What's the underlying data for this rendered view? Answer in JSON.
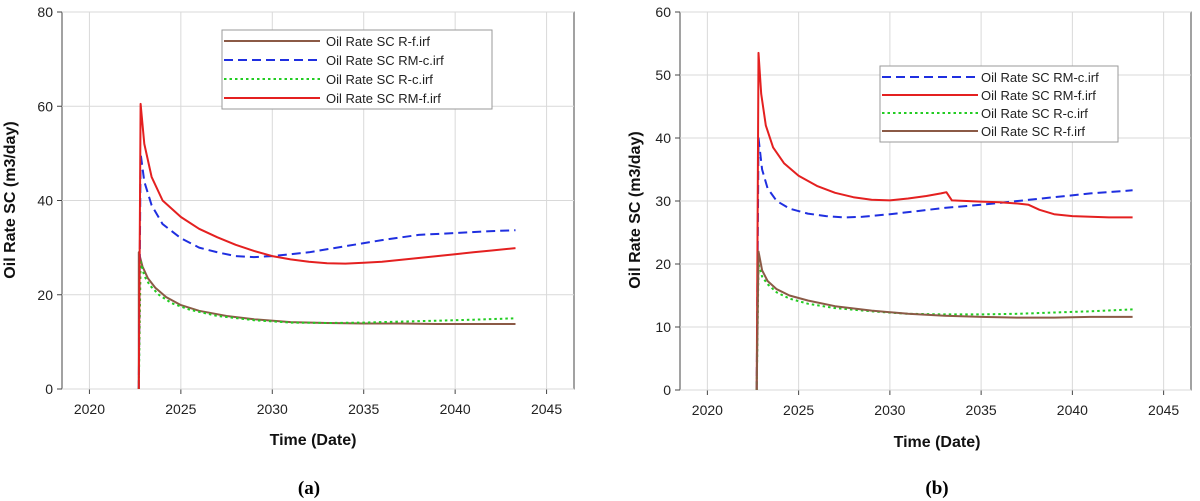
{
  "chart_data": [
    {
      "type": "line",
      "panel_label": "(a)",
      "title": "",
      "xlabel": "Time (Date)",
      "ylabel": "Oil Rate SC (m3/day)",
      "xlim": [
        2018.5,
        2046.5
      ],
      "ylim": [
        0,
        80
      ],
      "xticks": [
        2020,
        2025,
        2030,
        2035,
        2040,
        2045
      ],
      "yticks": [
        0,
        20,
        40,
        60,
        80
      ],
      "grid": true,
      "legend_position": "top-right",
      "series": [
        {
          "name": "Oil Rate SC R-f.irf",
          "color": "#8b5a46",
          "style": "solid",
          "x": [
            2022.7,
            2022.7,
            2022.9,
            2023.2,
            2023.6,
            2024.2,
            2025,
            2026,
            2027.5,
            2029,
            2031,
            2033,
            2035,
            2037,
            2039,
            2041,
            2043.3
          ],
          "y": [
            0,
            29,
            26,
            23.5,
            21.5,
            19.5,
            17.8,
            16.6,
            15.5,
            14.8,
            14.2,
            14.0,
            13.9,
            13.9,
            13.8,
            13.8,
            13.8
          ]
        },
        {
          "name": "Oil Rate SC RM-c.irf",
          "color": "#1f2fe0",
          "style": "dashed",
          "x": [
            2022.7,
            2022.8,
            2023.0,
            2023.4,
            2024,
            2025,
            2026,
            2027,
            2028,
            2029,
            2030,
            2032,
            2034,
            2036,
            2038,
            2040,
            2042,
            2043.3
          ],
          "y": [
            0,
            50,
            44,
            39,
            35,
            32,
            30,
            29,
            28.2,
            28,
            28.2,
            29,
            30.3,
            31.6,
            32.7,
            33.1,
            33.5,
            33.7
          ]
        },
        {
          "name": "Oil Rate SC R-c.irf",
          "color": "#22cc22",
          "style": "dotted",
          "x": [
            2022.7,
            2022.8,
            2023.0,
            2023.3,
            2023.8,
            2024.5,
            2025.5,
            2027,
            2029,
            2031,
            2033,
            2035,
            2037,
            2039,
            2041,
            2043.3
          ],
          "y": [
            0,
            27,
            24,
            22,
            20,
            18.2,
            16.8,
            15.5,
            14.6,
            14.1,
            14.0,
            14.1,
            14.3,
            14.5,
            14.7,
            15.0
          ]
        },
        {
          "name": "Oil Rate SC RM-f.irf",
          "color": "#e42020",
          "style": "solid",
          "x": [
            2022.7,
            2022.8,
            2023.0,
            2023.4,
            2024,
            2025,
            2026,
            2027,
            2028,
            2029,
            2030,
            2031,
            2032,
            2033,
            2034,
            2035,
            2036,
            2037,
            2038,
            2039,
            2040,
            2041,
            2042,
            2043.3
          ],
          "y": [
            0,
            60.5,
            52,
            45,
            40,
            36.5,
            34,
            32.2,
            30.6,
            29.3,
            28.2,
            27.5,
            27.0,
            26.7,
            26.6,
            26.8,
            27.0,
            27.4,
            27.8,
            28.2,
            28.6,
            29.0,
            29.4,
            29.9
          ]
        }
      ]
    },
    {
      "type": "line",
      "panel_label": "(b)",
      "title": "",
      "xlabel": "Time (Date)",
      "ylabel": "Oil Rate SC (m3/day)",
      "xlim": [
        2018.5,
        2046.5
      ],
      "ylim": [
        0,
        60
      ],
      "xticks": [
        2020,
        2025,
        2030,
        2035,
        2040,
        2045
      ],
      "yticks": [
        0,
        10,
        20,
        30,
        40,
        50,
        60
      ],
      "grid": true,
      "legend_position": "top-right",
      "series": [
        {
          "name": "Oil Rate SC RM-c.irf",
          "color": "#1f2fe0",
          "style": "dashed",
          "x": [
            2022.7,
            2022.8,
            2023.0,
            2023.3,
            2023.8,
            2024.5,
            2025.5,
            2026.5,
            2027.5,
            2028.5,
            2030,
            2031.5,
            2033,
            2035,
            2037,
            2039,
            2041,
            2043.3
          ],
          "y": [
            0,
            40,
            35,
            32,
            30,
            28.8,
            28,
            27.6,
            27.4,
            27.5,
            27.9,
            28.4,
            28.9,
            29.4,
            30,
            30.6,
            31.2,
            31.7
          ]
        },
        {
          "name": "Oil Rate SC RM-f.irf",
          "color": "#e42020",
          "style": "solid",
          "x": [
            2022.7,
            2022.8,
            2022.95,
            2023.2,
            2023.6,
            2024.2,
            2025,
            2026,
            2027,
            2028,
            2029,
            2030,
            2031,
            2032,
            2032.8,
            2033.1,
            2033.4,
            2035,
            2036,
            2037,
            2037.6,
            2038.2,
            2039,
            2040,
            2041,
            2042,
            2043.3
          ],
          "y": [
            0,
            53.5,
            47,
            42,
            38.5,
            36,
            34,
            32.4,
            31.3,
            30.6,
            30.2,
            30.1,
            30.4,
            30.8,
            31.2,
            31.4,
            30.1,
            29.9,
            29.8,
            29.6,
            29.4,
            28.6,
            27.9,
            27.6,
            27.5,
            27.4,
            27.4
          ]
        },
        {
          "name": "Oil Rate SC R-c.irf",
          "color": "#22cc22",
          "style": "dotted",
          "x": [
            2022.7,
            2022.8,
            2023.0,
            2023.3,
            2023.8,
            2024.5,
            2025.5,
            2027,
            2029,
            2031,
            2033,
            2035,
            2037,
            2039,
            2041,
            2043.3
          ],
          "y": [
            0,
            20,
            18,
            16.8,
            15.5,
            14.5,
            13.7,
            13.0,
            12.5,
            12.1,
            12.0,
            12.0,
            12.1,
            12.3,
            12.5,
            12.8
          ]
        },
        {
          "name": "Oil Rate SC R-f.irf",
          "color": "#8b5a46",
          "style": "solid",
          "x": [
            2022.7,
            2022.8,
            2023.0,
            2023.3,
            2023.8,
            2024.5,
            2025.5,
            2027,
            2029,
            2031,
            2033,
            2035,
            2037,
            2039,
            2041,
            2043.3
          ],
          "y": [
            0,
            22,
            19,
            17.3,
            16.0,
            15.0,
            14.2,
            13.3,
            12.6,
            12.1,
            11.8,
            11.6,
            11.5,
            11.5,
            11.6,
            11.6
          ]
        }
      ]
    }
  ]
}
